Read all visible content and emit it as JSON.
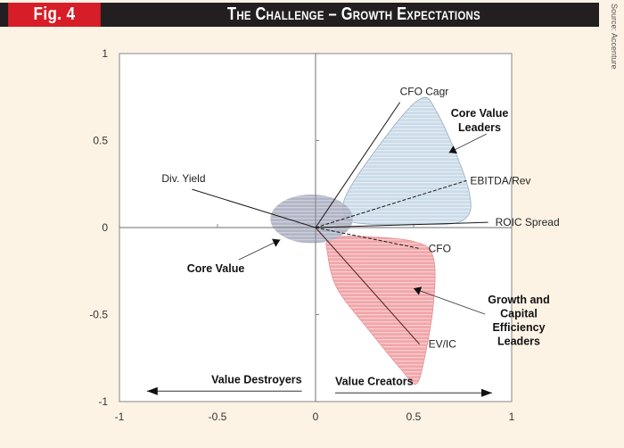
{
  "header": {
    "fig_label": "Fig. 4",
    "title": "The Challenge – Growth Expectations",
    "source": "Source: Accenture"
  },
  "colors": {
    "fig_label_bg": "#d71e28",
    "header_bg": "#231f20",
    "page_bg": "#fdf3e5",
    "core_value_leaders_fill": "#c5d7e6",
    "growth_leaders_fill": "#f2a7aa",
    "core_value_fill": "#a9adc2"
  },
  "chart_data": {
    "type": "scatter",
    "subtype": "biplot",
    "title": "The Challenge – Growth Expectations",
    "xlabel": "",
    "ylabel": "",
    "xlim": [
      -1,
      1
    ],
    "ylim": [
      -1,
      1
    ],
    "x_ticks": [
      -1,
      -0.5,
      0,
      0.5,
      1
    ],
    "y_ticks": [
      -1,
      -0.5,
      0,
      0.5,
      1
    ],
    "x_tick_labels": [
      "-1",
      "-0.5",
      "0",
      "0.5",
      "1"
    ],
    "y_tick_labels": [
      "-1",
      "-0.5",
      "0",
      "0.5",
      "1"
    ],
    "grid": false,
    "vectors": [
      {
        "name": "CFO Cagr",
        "x": 0.43,
        "y": 0.72,
        "style": "solid"
      },
      {
        "name": "EBITDA/Rev",
        "x": 0.77,
        "y": 0.27,
        "style": "dashed"
      },
      {
        "name": "ROIC Spread",
        "x": 0.88,
        "y": 0.03,
        "style": "solid"
      },
      {
        "name": "CFO",
        "x": 0.53,
        "y": -0.12,
        "style": "dashed"
      },
      {
        "name": "EV/IC",
        "x": 0.53,
        "y": -0.67,
        "style": "solid"
      },
      {
        "name": "Div. Yield",
        "x": -0.63,
        "y": 0.22,
        "style": "solid"
      }
    ],
    "groups": [
      {
        "name": "Core Value Leaders",
        "label_lines": [
          "Core Value",
          "Leaders"
        ],
        "marker": [
          0.68,
          0.43
        ],
        "color": "#c5d7e6",
        "outline": [
          [
            0.15,
            0.17
          ],
          [
            0.29,
            0.42
          ],
          [
            0.52,
            0.73
          ],
          [
            0.62,
            0.66
          ],
          [
            0.78,
            0.22
          ],
          [
            0.75,
            0.04
          ],
          [
            0.5,
            0.02
          ],
          [
            0.27,
            0.02
          ],
          [
            0.16,
            0.05
          ]
        ]
      },
      {
        "name": "Growth and Capital Efficiency Leaders",
        "label_lines": [
          "Growth  and",
          "Capital",
          "Efficiency",
          "Leaders"
        ],
        "marker": [
          0.5,
          -0.35
        ],
        "color": "#f2a7aa",
        "outline": [
          [
            0.07,
            -0.07
          ],
          [
            0.2,
            -0.05
          ],
          [
            0.5,
            -0.08
          ],
          [
            0.6,
            -0.17
          ],
          [
            0.6,
            -0.45
          ],
          [
            0.55,
            -0.78
          ],
          [
            0.51,
            -0.9
          ],
          [
            0.44,
            -0.82
          ],
          [
            0.28,
            -0.6
          ],
          [
            0.11,
            -0.35
          ],
          [
            0.06,
            -0.14
          ]
        ]
      },
      {
        "name": "Core Value",
        "label_lines": [
          "Core Value"
        ],
        "marker": [
          -0.18,
          -0.07
        ],
        "color": "#a9adc2",
        "ellipse": {
          "cx": -0.02,
          "cy": 0.05,
          "rx": 0.21,
          "ry": 0.14
        }
      }
    ],
    "annotations": [
      {
        "text": "Value Destroyers",
        "direction": "left",
        "from_x": -0.07,
        "to_x": -0.86,
        "y": -0.94
      },
      {
        "text": "Value Creators",
        "direction": "right",
        "from_x": 0.1,
        "to_x": 0.9,
        "y": -0.95
      }
    ]
  }
}
